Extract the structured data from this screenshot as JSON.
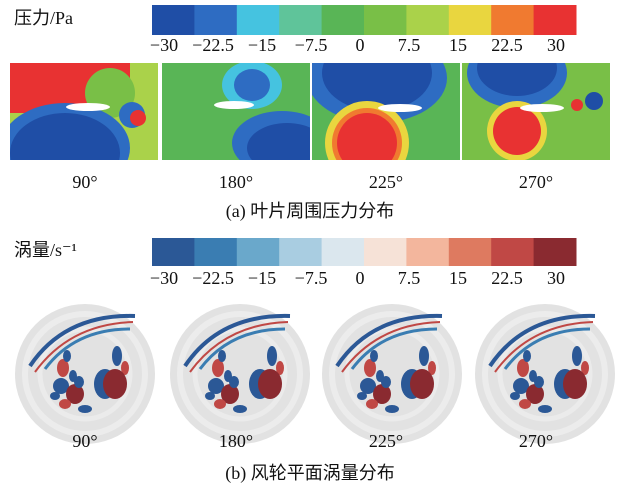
{
  "panels": [
    {
      "colorbar": {
        "label": "压力/Pa",
        "colors": [
          "#1f4ea6",
          "#2e6cc2",
          "#45c3e0",
          "#5fc49a",
          "#59b556",
          "#79bf47",
          "#aad24a",
          "#e9d63f",
          "#f07a30",
          "#e83232"
        ],
        "ticks": [
          "−30",
          "−22.5",
          "−15",
          "−7.5",
          "0",
          "7.5",
          "15",
          "22.5",
          "30"
        ]
      },
      "images": [
        {
          "angle": "90°"
        },
        {
          "angle": "180°"
        },
        {
          "angle": "225°"
        },
        {
          "angle": "270°"
        }
      ],
      "caption": "(a) 叶片周围压力分布"
    },
    {
      "colorbar": {
        "label": "涡量/s⁻¹",
        "colors": [
          "#2b5896",
          "#3a7db2",
          "#6aa8cb",
          "#a9cde1",
          "#dbe7ee",
          "#f6e2d7",
          "#f3b69d",
          "#de7a60",
          "#c04845",
          "#8a2a30"
        ],
        "ticks": [
          "−30",
          "−22.5",
          "−15",
          "−7.5",
          "0",
          "7.5",
          "15",
          "22.5",
          "30"
        ]
      },
      "images": [
        {
          "angle": "90°"
        },
        {
          "angle": "180°"
        },
        {
          "angle": "225°"
        },
        {
          "angle": "270°"
        }
      ],
      "caption": "(b) 风轮平面涡量分布"
    }
  ]
}
